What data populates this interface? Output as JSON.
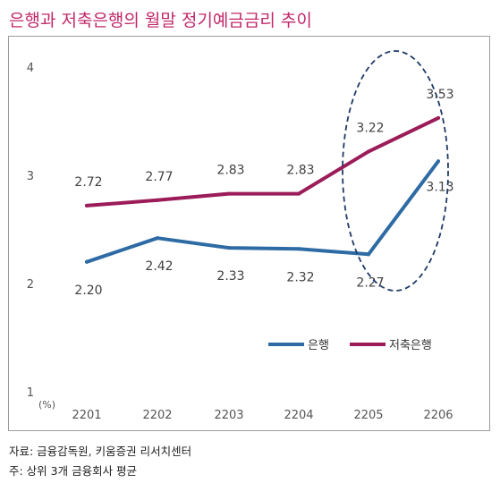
{
  "title": "은행과 저축은행의 월말 정기예금금리 추이",
  "source": "자료: 금융감독원, 키움증권 리서치센터",
  "footnote": "주: 상위 3개 금융회사 평균",
  "colors": {
    "title": "#c0286a",
    "bank": "#2e6ba4",
    "savings": "#9b1c58",
    "ellipse": "#1e3a66"
  },
  "chart_data": {
    "type": "line",
    "categories": [
      "2201",
      "2202",
      "2203",
      "2204",
      "2205",
      "2206"
    ],
    "series": [
      {
        "name": "은행",
        "values": [
          2.2,
          2.42,
          2.33,
          2.32,
          2.27,
          3.13
        ],
        "labels": [
          "2.20",
          "2.42",
          "2.33",
          "2.32",
          "2.27",
          "3.13"
        ]
      },
      {
        "name": "저축은행",
        "values": [
          2.72,
          2.77,
          2.83,
          2.83,
          3.22,
          3.53
        ],
        "labels": [
          "2.72",
          "2.77",
          "2.83",
          "2.83",
          "3.22",
          "3.53"
        ]
      }
    ],
    "yticks": [
      "1",
      "2",
      "3",
      "4"
    ],
    "ylim": [
      1,
      4
    ],
    "ylabel": "(%)",
    "grid": false,
    "legend": "bottom-right",
    "highlight": [
      "2205",
      "2206"
    ]
  }
}
